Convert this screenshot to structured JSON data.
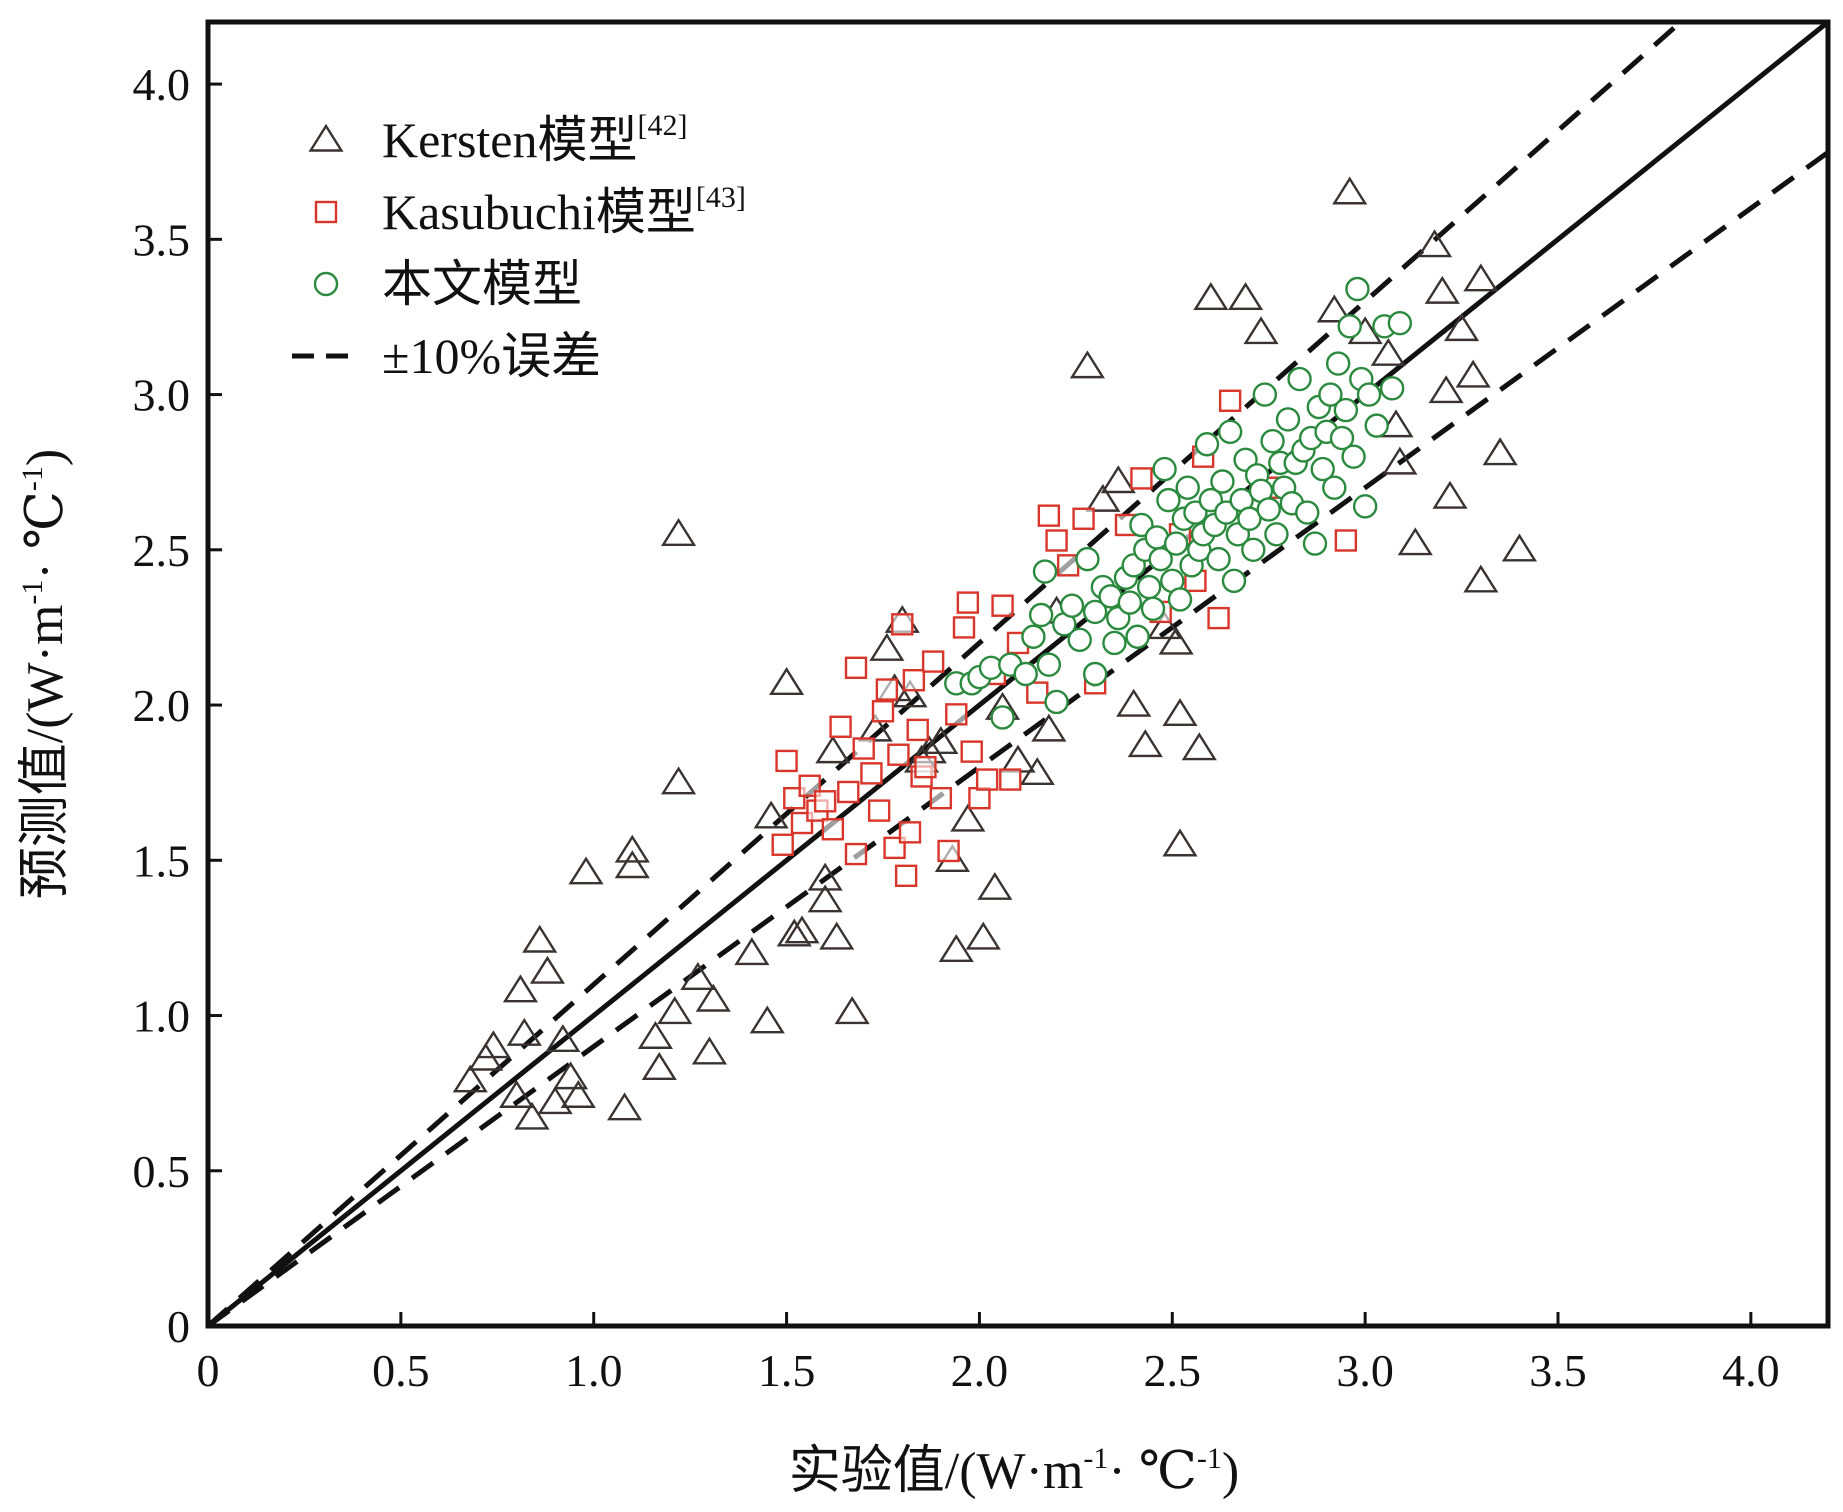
{
  "chart_data": {
    "type": "scatter",
    "xlabel_prefix": "实验值",
    "ylabel_prefix": "预测值",
    "unit": {
      "open": "/(W·m",
      "exp1": "-1",
      "mid": "· ℃",
      "exp2": "-1",
      "close": ")"
    },
    "xlim": [
      0,
      4.2
    ],
    "ylim": [
      0,
      4.2
    ],
    "x_ticks": [
      {
        "v": 0,
        "label": "0"
      },
      {
        "v": 0.5,
        "label": "0.5"
      },
      {
        "v": 1.0,
        "label": "1.0"
      },
      {
        "v": 1.5,
        "label": "1.5"
      },
      {
        "v": 2.0,
        "label": "2.0"
      },
      {
        "v": 2.5,
        "label": "2.5"
      },
      {
        "v": 3.0,
        "label": "3.0"
      },
      {
        "v": 3.5,
        "label": "3.5"
      },
      {
        "v": 4.0,
        "label": "4.0"
      }
    ],
    "y_ticks": [
      {
        "v": 0,
        "label": "0"
      },
      {
        "v": 0.5,
        "label": "0.5"
      },
      {
        "v": 1.0,
        "label": "1.0"
      },
      {
        "v": 1.5,
        "label": "1.5"
      },
      {
        "v": 2.0,
        "label": "2.0"
      },
      {
        "v": 2.5,
        "label": "2.5"
      },
      {
        "v": 3.0,
        "label": "3.0"
      },
      {
        "v": 3.5,
        "label": "3.5"
      },
      {
        "v": 4.0,
        "label": "4.0"
      }
    ],
    "grid": false,
    "legend_position": "top-left",
    "series": [
      {
        "name": "Kersten模型",
        "ref": "[42]",
        "marker": "triangle",
        "color": "#3a3330",
        "points": [
          [
            0.68,
            0.79
          ],
          [
            0.72,
            0.86
          ],
          [
            0.74,
            0.9
          ],
          [
            0.8,
            0.74
          ],
          [
            0.81,
            1.08
          ],
          [
            0.82,
            0.94
          ],
          [
            0.84,
            0.67
          ],
          [
            0.86,
            1.24
          ],
          [
            0.88,
            1.14
          ],
          [
            0.9,
            0.72
          ],
          [
            0.92,
            0.92
          ],
          [
            0.94,
            0.8
          ],
          [
            0.96,
            0.74
          ],
          [
            0.98,
            1.46
          ],
          [
            1.08,
            0.7
          ],
          [
            1.1,
            1.53
          ],
          [
            1.1,
            1.48
          ],
          [
            1.16,
            0.93
          ],
          [
            1.17,
            0.83
          ],
          [
            1.21,
            1.01
          ],
          [
            1.22,
            1.75
          ],
          [
            1.22,
            2.55
          ],
          [
            1.27,
            1.12
          ],
          [
            1.3,
            0.88
          ],
          [
            1.31,
            1.05
          ],
          [
            1.41,
            1.2
          ],
          [
            1.45,
            0.98
          ],
          [
            1.46,
            1.64
          ],
          [
            1.5,
            2.07
          ],
          [
            1.52,
            1.26
          ],
          [
            1.54,
            1.27
          ],
          [
            1.6,
            1.37
          ],
          [
            1.6,
            1.44
          ],
          [
            1.62,
            1.85
          ],
          [
            1.63,
            1.25
          ],
          [
            1.67,
            1.01
          ],
          [
            1.73,
            1.92
          ],
          [
            1.76,
            2.18
          ],
          [
            1.78,
            2.05
          ],
          [
            1.8,
            2.27
          ],
          [
            1.82,
            2.03
          ],
          [
            1.85,
            1.82
          ],
          [
            1.87,
            1.85
          ],
          [
            1.9,
            1.88
          ],
          [
            1.93,
            1.5
          ],
          [
            1.94,
            1.21
          ],
          [
            1.97,
            1.63
          ],
          [
            2.01,
            1.25
          ],
          [
            2.04,
            1.41
          ],
          [
            2.06,
            1.99
          ],
          [
            2.1,
            1.82
          ],
          [
            2.15,
            1.78
          ],
          [
            2.18,
            1.92
          ],
          [
            2.2,
            2.3
          ],
          [
            2.28,
            3.09
          ],
          [
            2.32,
            2.66
          ],
          [
            2.36,
            2.72
          ],
          [
            2.4,
            2.0
          ],
          [
            2.43,
            1.87
          ],
          [
            2.48,
            2.25
          ],
          [
            2.51,
            2.2
          ],
          [
            2.52,
            1.97
          ],
          [
            2.52,
            1.55
          ],
          [
            2.57,
            1.86
          ],
          [
            2.6,
            3.31
          ],
          [
            2.69,
            3.31
          ],
          [
            2.73,
            3.2
          ],
          [
            2.92,
            3.27
          ],
          [
            2.96,
            3.65
          ],
          [
            3.0,
            3.2
          ],
          [
            3.06,
            3.13
          ],
          [
            3.08,
            2.9
          ],
          [
            3.09,
            2.78
          ],
          [
            3.13,
            2.52
          ],
          [
            3.18,
            3.48
          ],
          [
            3.2,
            3.33
          ],
          [
            3.21,
            3.01
          ],
          [
            3.22,
            2.67
          ],
          [
            3.25,
            3.21
          ],
          [
            3.28,
            3.06
          ],
          [
            3.3,
            3.37
          ],
          [
            3.3,
            2.4
          ],
          [
            3.35,
            2.81
          ],
          [
            3.4,
            2.5
          ]
        ]
      },
      {
        "name": "Kasubuchi模型",
        "ref": "[43]",
        "marker": "square",
        "color": "#d9362b",
        "points": [
          [
            1.49,
            1.55
          ],
          [
            1.5,
            1.82
          ],
          [
            1.52,
            1.7
          ],
          [
            1.54,
            1.62
          ],
          [
            1.56,
            1.74
          ],
          [
            1.58,
            1.66
          ],
          [
            1.6,
            1.69
          ],
          [
            1.62,
            1.6
          ],
          [
            1.64,
            1.93
          ],
          [
            1.66,
            1.72
          ],
          [
            1.68,
            2.12
          ],
          [
            1.68,
            1.52
          ],
          [
            1.7,
            1.86
          ],
          [
            1.72,
            1.78
          ],
          [
            1.74,
            1.66
          ],
          [
            1.75,
            1.98
          ],
          [
            1.76,
            2.05
          ],
          [
            1.78,
            1.54
          ],
          [
            1.79,
            1.84
          ],
          [
            1.8,
            2.26
          ],
          [
            1.81,
            1.45
          ],
          [
            1.82,
            1.59
          ],
          [
            1.83,
            2.08
          ],
          [
            1.84,
            1.92
          ],
          [
            1.85,
            1.77
          ],
          [
            1.86,
            1.8
          ],
          [
            1.88,
            2.14
          ],
          [
            1.9,
            1.7
          ],
          [
            1.92,
            1.53
          ],
          [
            1.94,
            1.97
          ],
          [
            1.96,
            2.25
          ],
          [
            1.97,
            2.33
          ],
          [
            1.98,
            1.85
          ],
          [
            2.0,
            1.7
          ],
          [
            2.02,
            1.76
          ],
          [
            2.04,
            2.1
          ],
          [
            2.06,
            2.32
          ],
          [
            2.08,
            1.76
          ],
          [
            2.1,
            2.2
          ],
          [
            2.15,
            2.04
          ],
          [
            2.18,
            2.61
          ],
          [
            2.2,
            2.53
          ],
          [
            2.23,
            2.45
          ],
          [
            2.27,
            2.6
          ],
          [
            2.3,
            2.07
          ],
          [
            2.38,
            2.58
          ],
          [
            2.42,
            2.73
          ],
          [
            2.47,
            2.3
          ],
          [
            2.52,
            2.55
          ],
          [
            2.56,
            2.4
          ],
          [
            2.58,
            2.8
          ],
          [
            2.62,
            2.28
          ],
          [
            2.65,
            2.98
          ],
          [
            2.75,
            2.7
          ],
          [
            2.95,
            2.53
          ]
        ]
      },
      {
        "name": "本文模型",
        "marker": "circle",
        "color": "#2b8a3e",
        "points": [
          [
            1.94,
            2.07
          ],
          [
            1.98,
            2.07
          ],
          [
            2.0,
            2.09
          ],
          [
            2.03,
            2.12
          ],
          [
            2.06,
            1.96
          ],
          [
            2.08,
            2.13
          ],
          [
            2.12,
            2.1
          ],
          [
            2.14,
            2.22
          ],
          [
            2.16,
            2.29
          ],
          [
            2.17,
            2.43
          ],
          [
            2.18,
            2.13
          ],
          [
            2.2,
            2.01
          ],
          [
            2.22,
            2.26
          ],
          [
            2.24,
            2.32
          ],
          [
            2.26,
            2.21
          ],
          [
            2.28,
            2.47
          ],
          [
            2.3,
            2.1
          ],
          [
            2.3,
            2.3
          ],
          [
            2.32,
            2.38
          ],
          [
            2.34,
            2.35
          ],
          [
            2.35,
            2.2
          ],
          [
            2.36,
            2.28
          ],
          [
            2.38,
            2.41
          ],
          [
            2.39,
            2.33
          ],
          [
            2.4,
            2.45
          ],
          [
            2.41,
            2.22
          ],
          [
            2.42,
            2.58
          ],
          [
            2.43,
            2.5
          ],
          [
            2.44,
            2.38
          ],
          [
            2.45,
            2.31
          ],
          [
            2.46,
            2.54
          ],
          [
            2.47,
            2.47
          ],
          [
            2.48,
            2.76
          ],
          [
            2.49,
            2.66
          ],
          [
            2.5,
            2.4
          ],
          [
            2.51,
            2.52
          ],
          [
            2.52,
            2.34
          ],
          [
            2.53,
            2.6
          ],
          [
            2.54,
            2.7
          ],
          [
            2.55,
            2.45
          ],
          [
            2.56,
            2.62
          ],
          [
            2.57,
            2.5
          ],
          [
            2.58,
            2.55
          ],
          [
            2.59,
            2.84
          ],
          [
            2.6,
            2.66
          ],
          [
            2.61,
            2.58
          ],
          [
            2.62,
            2.47
          ],
          [
            2.63,
            2.72
          ],
          [
            2.64,
            2.62
          ],
          [
            2.65,
            2.88
          ],
          [
            2.66,
            2.4
          ],
          [
            2.67,
            2.55
          ],
          [
            2.68,
            2.66
          ],
          [
            2.69,
            2.79
          ],
          [
            2.7,
            2.6
          ],
          [
            2.71,
            2.5
          ],
          [
            2.72,
            2.74
          ],
          [
            2.73,
            2.69
          ],
          [
            2.74,
            3.0
          ],
          [
            2.75,
            2.63
          ],
          [
            2.76,
            2.85
          ],
          [
            2.77,
            2.55
          ],
          [
            2.78,
            2.78
          ],
          [
            2.79,
            2.7
          ],
          [
            2.8,
            2.92
          ],
          [
            2.81,
            2.65
          ],
          [
            2.82,
            2.78
          ],
          [
            2.83,
            3.05
          ],
          [
            2.84,
            2.82
          ],
          [
            2.85,
            2.62
          ],
          [
            2.86,
            2.86
          ],
          [
            2.87,
            2.52
          ],
          [
            2.88,
            2.96
          ],
          [
            2.89,
            2.76
          ],
          [
            2.9,
            2.88
          ],
          [
            2.91,
            3.0
          ],
          [
            2.92,
            2.7
          ],
          [
            2.93,
            3.1
          ],
          [
            2.94,
            2.86
          ],
          [
            2.95,
            2.95
          ],
          [
            2.96,
            3.22
          ],
          [
            2.97,
            2.8
          ],
          [
            2.98,
            3.34
          ],
          [
            2.99,
            3.05
          ],
          [
            3.0,
            2.64
          ],
          [
            3.01,
            3.0
          ],
          [
            3.03,
            2.9
          ],
          [
            3.05,
            3.22
          ],
          [
            3.07,
            3.02
          ],
          [
            3.09,
            3.23
          ]
        ]
      }
    ],
    "lines": [
      {
        "name": "1:1",
        "style": "solid",
        "slope": 1.0
      },
      {
        "name": "±10%误差",
        "style": "dashed",
        "slope": 1.1
      },
      {
        "name": "±10%误差",
        "style": "dashed",
        "slope": 0.9
      }
    ],
    "legend": [
      {
        "marker": "triangle",
        "label": "Kersten模型",
        "sup": "[42]",
        "color": "#3a3330"
      },
      {
        "marker": "square",
        "label": "Kasubuchi模型",
        "sup": "[43]",
        "color": "#d9362b"
      },
      {
        "marker": "circle",
        "label": "本文模型",
        "sup": "",
        "color": "#2b8a3e"
      },
      {
        "marker": "dash",
        "label": "±10%误差",
        "sup": "",
        "color": "#111111"
      }
    ]
  }
}
